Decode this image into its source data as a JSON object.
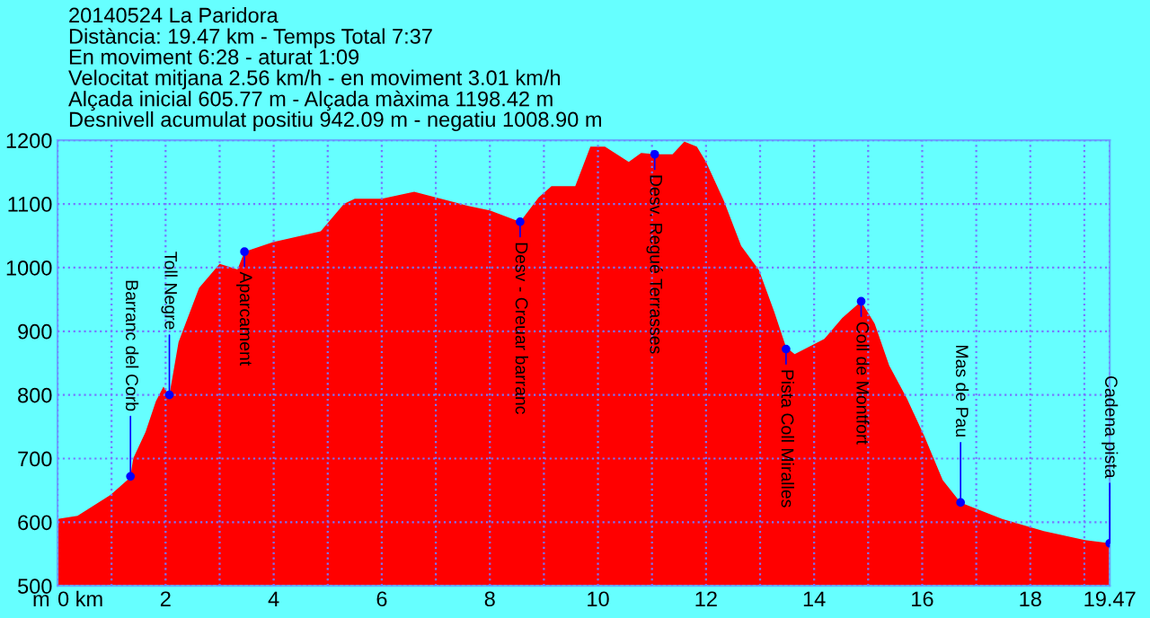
{
  "chart_data": {
    "type": "area",
    "title": "20140524 La Paridora",
    "subtitle": "Distància: 19.47 km - Temps Total 7:37\nEn moviment 6:28 - aturat 1:09\nVelocitat mitjana 2.56 km/h - en moviment 3.01 km/h\nAlçada inicial 605.77 m - Alçada màxima 1198.42 m\nDesnivell acumulat positiu 942.09 m - negatiu 1008.90 m",
    "ylabel": "m",
    "x": [
      0,
      0.37,
      0.98,
      1.3,
      1.35,
      1.4,
      1.63,
      1.82,
      1.96,
      2.07,
      2.24,
      2.62,
      3.0,
      3.33,
      3.46,
      3.99,
      4.87,
      5.3,
      5.5,
      6.0,
      6.6,
      7.6,
      8.0,
      8.56,
      8.9,
      9.14,
      9.58,
      9.86,
      10.13,
      10.57,
      10.8,
      11.05,
      11.38,
      11.6,
      11.83,
      12.0,
      12.33,
      12.65,
      12.98,
      13.26,
      13.48,
      13.64,
      14.19,
      14.52,
      14.87,
      15.12,
      15.39,
      15.72,
      16.05,
      16.38,
      16.71,
      17.48,
      18.25,
      19.01,
      19.47
    ],
    "series": [
      {
        "color": "#ff0000",
        "values": [
          605,
          610,
          643,
          667,
          672,
          700,
          742,
          790,
          813,
          800,
          883,
          968,
          1006,
          997,
          1025,
          1040,
          1057,
          1100,
          1108,
          1108,
          1119,
          1097,
          1090,
          1072,
          1110,
          1128,
          1128,
          1190,
          1190,
          1166,
          1180,
          1178,
          1178,
          1198,
          1190,
          1166,
          1105,
          1034,
          996,
          931,
          875,
          864,
          888,
          921,
          947,
          912,
          846,
          794,
          733,
          666,
          631,
          605,
          586,
          572,
          567
        ]
      }
    ],
    "xlim": [
      0,
      19.47
    ],
    "ylim": [
      500,
      1200
    ],
    "xticks": [
      {
        "value": 0,
        "label": "0 km"
      },
      {
        "value": 1,
        "label": null
      },
      2,
      {
        "value": 3,
        "label": null
      },
      4,
      {
        "value": 5,
        "label": null
      },
      6,
      {
        "value": 7,
        "label": null
      },
      8,
      {
        "value": 9,
        "label": null
      },
      10,
      {
        "value": 11,
        "label": null
      },
      12,
      {
        "value": 13,
        "label": null
      },
      14,
      {
        "value": 15,
        "label": null
      },
      16,
      {
        "value": 17,
        "label": null
      },
      18,
      {
        "value": 19,
        "label": null
      },
      19.47
    ],
    "yticks": [
      500,
      600,
      700,
      800,
      900,
      1000,
      1100,
      1200
    ],
    "grid": true,
    "annotations": [
      {
        "text": "Barranc del Corb",
        "x": 1.35,
        "y": 672
      },
      {
        "text": "Toll Negre",
        "x": 2.07,
        "y": 800
      },
      {
        "text": "Aparcament",
        "x": 3.46,
        "y": 1025
      },
      {
        "text": "Desv - Creuar barranc",
        "x": 8.56,
        "y": 1072
      },
      {
        "text": "Desv. Regué Terrasses",
        "x": 11.05,
        "y": 1178
      },
      {
        "text": "Pista Coll Miralles",
        "x": 13.48,
        "y": 872
      },
      {
        "text": "Coll de Montfort",
        "x": 14.87,
        "y": 947
      },
      {
        "text": "Mas de Pau",
        "x": 16.71,
        "y": 631
      },
      {
        "text": "Cadena pista",
        "x": 19.47,
        "y": 567
      }
    ]
  }
}
